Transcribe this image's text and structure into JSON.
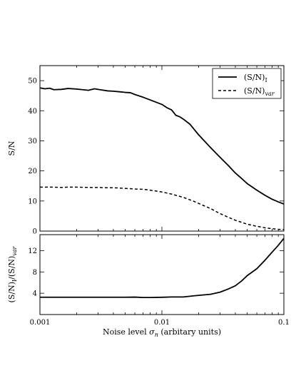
{
  "chart_data": [
    {
      "type": "line",
      "xscale": "log",
      "xlim": [
        0.001,
        0.1
      ],
      "ylim": [
        0,
        55
      ],
      "ylabel": "S/N",
      "yticks": [
        0,
        10,
        20,
        30,
        40,
        50
      ],
      "legend": {
        "placement": "top-right"
      },
      "series": [
        {
          "name": "(S/N)I",
          "name_main": "(S/N)",
          "name_sub": "I",
          "style": "solid",
          "x": [
            0.001,
            0.0011,
            0.0012,
            0.0013,
            0.0015,
            0.0017,
            0.002,
            0.0025,
            0.0028,
            0.0032,
            0.0036,
            0.004,
            0.0045,
            0.005,
            0.0055,
            0.006,
            0.007,
            0.008,
            0.009,
            0.01,
            0.011,
            0.012,
            0.013,
            0.014,
            0.015,
            0.017,
            0.02,
            0.025,
            0.03,
            0.035,
            0.04,
            0.045,
            0.05,
            0.06,
            0.07,
            0.08,
            0.09,
            0.1
          ],
          "y": [
            47.6,
            47.3,
            47.5,
            47.0,
            47.1,
            47.4,
            47.2,
            46.8,
            47.3,
            46.9,
            46.6,
            46.5,
            46.3,
            46.1,
            46.0,
            45.4,
            44.5,
            43.6,
            42.8,
            42.1,
            41.0,
            40.3,
            38.5,
            38.0,
            37.2,
            35.5,
            32.0,
            27.8,
            24.5,
            21.8,
            19.3,
            17.5,
            15.8,
            13.6,
            11.9,
            10.6,
            9.7,
            9.0
          ]
        },
        {
          "name": "(S/N)var",
          "name_main": "(S/N)",
          "name_sub": "var",
          "style": "dashed",
          "x": [
            0.001,
            0.0013,
            0.0015,
            0.0017,
            0.002,
            0.0025,
            0.003,
            0.0035,
            0.004,
            0.0045,
            0.005,
            0.006,
            0.007,
            0.008,
            0.009,
            0.01,
            0.012,
            0.015,
            0.018,
            0.02,
            0.025,
            0.03,
            0.035,
            0.04,
            0.05,
            0.06,
            0.07,
            0.08,
            0.09,
            0.1
          ],
          "y": [
            14.6,
            14.6,
            14.5,
            14.6,
            14.6,
            14.5,
            14.5,
            14.4,
            14.4,
            14.3,
            14.2,
            14.0,
            13.9,
            13.6,
            13.3,
            13.0,
            12.3,
            11.2,
            10.0,
            9.2,
            7.5,
            5.8,
            4.6,
            3.6,
            2.3,
            1.6,
            1.1,
            0.8,
            0.6,
            0.5
          ]
        }
      ]
    },
    {
      "type": "line",
      "xscale": "log",
      "xlim": [
        0.001,
        0.1
      ],
      "ylim": [
        0,
        15
      ],
      "yticks": [
        4,
        8,
        12
      ],
      "xticks": [
        0.001,
        0.01,
        0.1
      ],
      "xtick_labels": [
        "0.001",
        "0.01",
        "0.1"
      ],
      "ylabel": "(S/N)I/(S/N)var",
      "xlabel": "Noise level σn (arbitary units)",
      "series": [
        {
          "style": "solid",
          "x": [
            0.001,
            0.0015,
            0.002,
            0.003,
            0.004,
            0.005,
            0.006,
            0.007,
            0.008,
            0.01,
            0.012,
            0.015,
            0.018,
            0.02,
            0.025,
            0.03,
            0.035,
            0.04,
            0.045,
            0.05,
            0.06,
            0.07,
            0.08,
            0.09,
            0.1
          ],
          "y": [
            3.25,
            3.25,
            3.25,
            3.25,
            3.25,
            3.25,
            3.27,
            3.2,
            3.2,
            3.24,
            3.3,
            3.3,
            3.5,
            3.6,
            3.8,
            4.2,
            4.8,
            5.4,
            6.3,
            7.3,
            8.6,
            10.2,
            11.7,
            13.0,
            14.3
          ]
        }
      ]
    }
  ],
  "labels": {
    "top_ylabel": "S/N",
    "bottom_ylabel_main": "(S/N)",
    "bottom_ylabel_sub1": "I",
    "bottom_ylabel_mid": "/(S/N)",
    "bottom_ylabel_sub2": "var",
    "xlabel_prefix": "Noise level ",
    "xlabel_sigma": "σ",
    "xlabel_sub": "n",
    "xlabel_suffix": " (arbitary units)"
  }
}
